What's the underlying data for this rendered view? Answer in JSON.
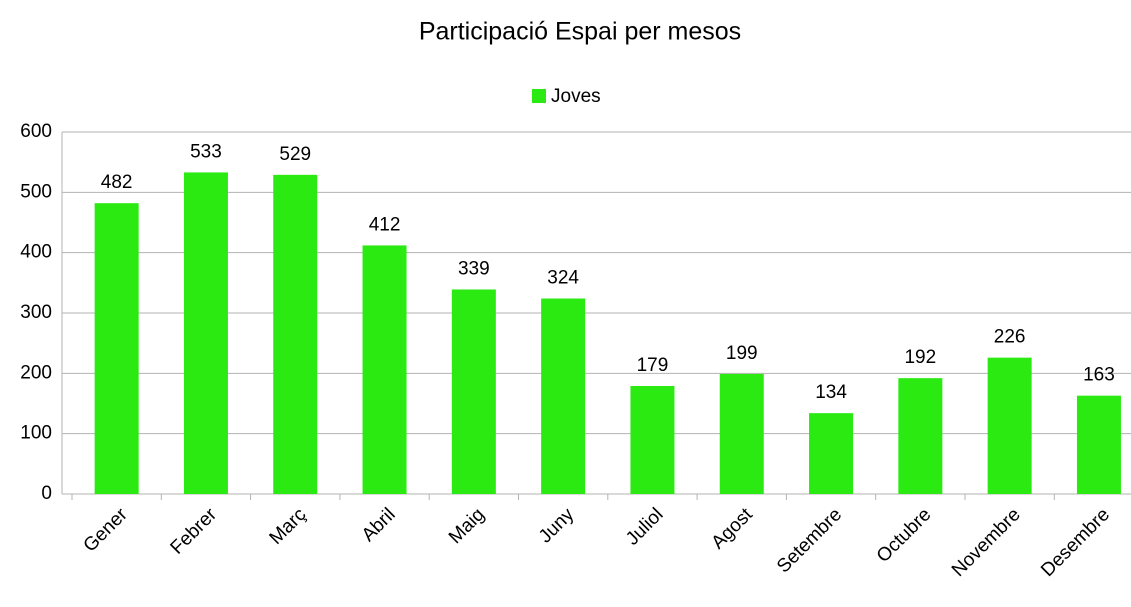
{
  "chart_data": {
    "type": "bar",
    "title": "Participació Espai per mesos",
    "categories": [
      "Gener",
      "Febrer",
      "Març",
      "Abril",
      "Maig",
      "Juny",
      "Juliol",
      "Agost",
      "Setembre",
      "Octubre",
      "Novembre",
      "Desembre"
    ],
    "series": [
      {
        "name": "Joves",
        "color": "#2aea12",
        "values": [
          482,
          533,
          529,
          412,
          339,
          324,
          179,
          199,
          134,
          192,
          226,
          163
        ]
      }
    ],
    "ylim": [
      0,
      600
    ],
    "yticks": [
      0,
      100,
      200,
      300,
      400,
      500,
      600
    ],
    "grid": true,
    "legend": "top"
  }
}
